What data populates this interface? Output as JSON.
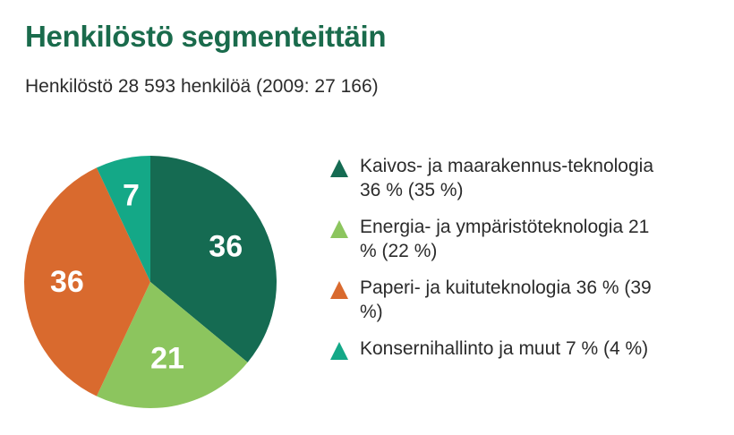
{
  "title": "Henkilöstö segmenteittäin",
  "subtitle": "Henkilöstö 28 593 henkilöä (2009: 27 166)",
  "chart_data": {
    "type": "pie",
    "title": "Henkilöstö segmenteittäin",
    "subtitle": "Henkilöstö 28 593 henkilöä (2009: 27 166)",
    "categories": [
      "Kaivos- ja maarakennusteknologia",
      "Energia- ja ympäristöteknologia",
      "Paperi- ja kuituteknologia",
      "Konsernihallinto ja muut"
    ],
    "values": [
      36,
      21,
      36,
      7
    ],
    "data_labels": [
      "36",
      "21",
      "36",
      "7"
    ],
    "colors": [
      "#156b52",
      "#8cc55e",
      "#d96a2e",
      "#14a887"
    ],
    "legend_placement": "right"
  },
  "legend": [
    {
      "text": "Kaivos- ja maarakennus-teknologia 36 % (35 %)",
      "color": "#156b52",
      "marker": "triangle-icon"
    },
    {
      "text": "Energia- ja ympäristöteknologia 21 % (22 %)",
      "color": "#8cc55e",
      "marker": "triangle-icon"
    },
    {
      "text": "Paperi- ja kuituteknologia 36 % (39 %)",
      "color": "#d96a2e",
      "marker": "triangle-icon"
    },
    {
      "text": "Konsernihallinto ja muut 7 % (4 %)",
      "color": "#14a887",
      "marker": "triangle-icon"
    }
  ]
}
